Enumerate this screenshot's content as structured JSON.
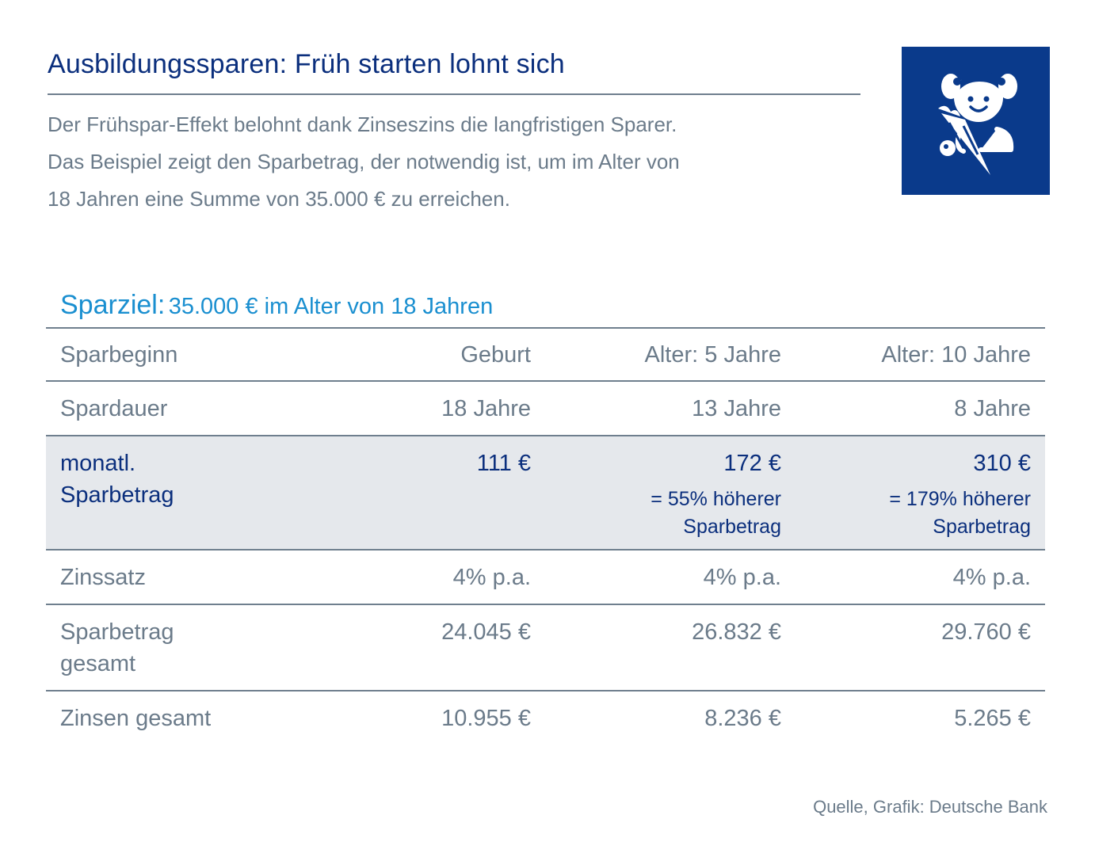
{
  "header": {
    "title": "Ausbildungssparen: Früh starten lohnt sich",
    "intro_lines": [
      "Der Frühspar-Effekt belohnt dank Zinseszins die langfristigen Sparer.",
      "Das Beispiel zeigt den Sparbetrag, der notwendig ist, um im Alter von",
      "18 Jahren eine Summe von 35.000 € zu erreichen."
    ],
    "logo_icon": "child-with-school-cone-icon",
    "logo_color": "#0a3a8b"
  },
  "goal": {
    "label": "Sparziel:",
    "value": "35.000 € im Alter von 18 Jahren"
  },
  "table": {
    "rows": [
      {
        "label": "Sparbeginn",
        "cells": [
          "Geburt",
          "Alter: 5 Jahre",
          "Alter: 10 Jahre"
        ]
      },
      {
        "label": "Spardauer",
        "cells": [
          "18 Jahre",
          "13 Jahre",
          "8 Jahre"
        ]
      },
      {
        "label": "monatl. Sparbetrag",
        "cells": [
          "111 €",
          "172 €",
          "310 €"
        ],
        "notes": [
          "",
          "= 55% höherer Sparbetrag",
          "= 179% höherer Sparbetrag"
        ]
      },
      {
        "label": "Zinssatz",
        "cells": [
          "4% p.a.",
          "4% p.a.",
          "4% p.a."
        ]
      },
      {
        "label": "Sparbetrag gesamt",
        "cells": [
          "24.045 €",
          "26.832 €",
          "29.760 €"
        ]
      },
      {
        "label": "Zinsen gesamt",
        "cells": [
          "10.955 €",
          "8.236 €",
          "5.265 €"
        ]
      }
    ]
  },
  "footer": {
    "source": "Quelle, Grafik: Deutsche Bank"
  },
  "colors": {
    "title": "#0b2f7d",
    "text": "#6b7b8a",
    "accent": "#1a8fd0",
    "highlight_bg": "#e5e8ec"
  }
}
